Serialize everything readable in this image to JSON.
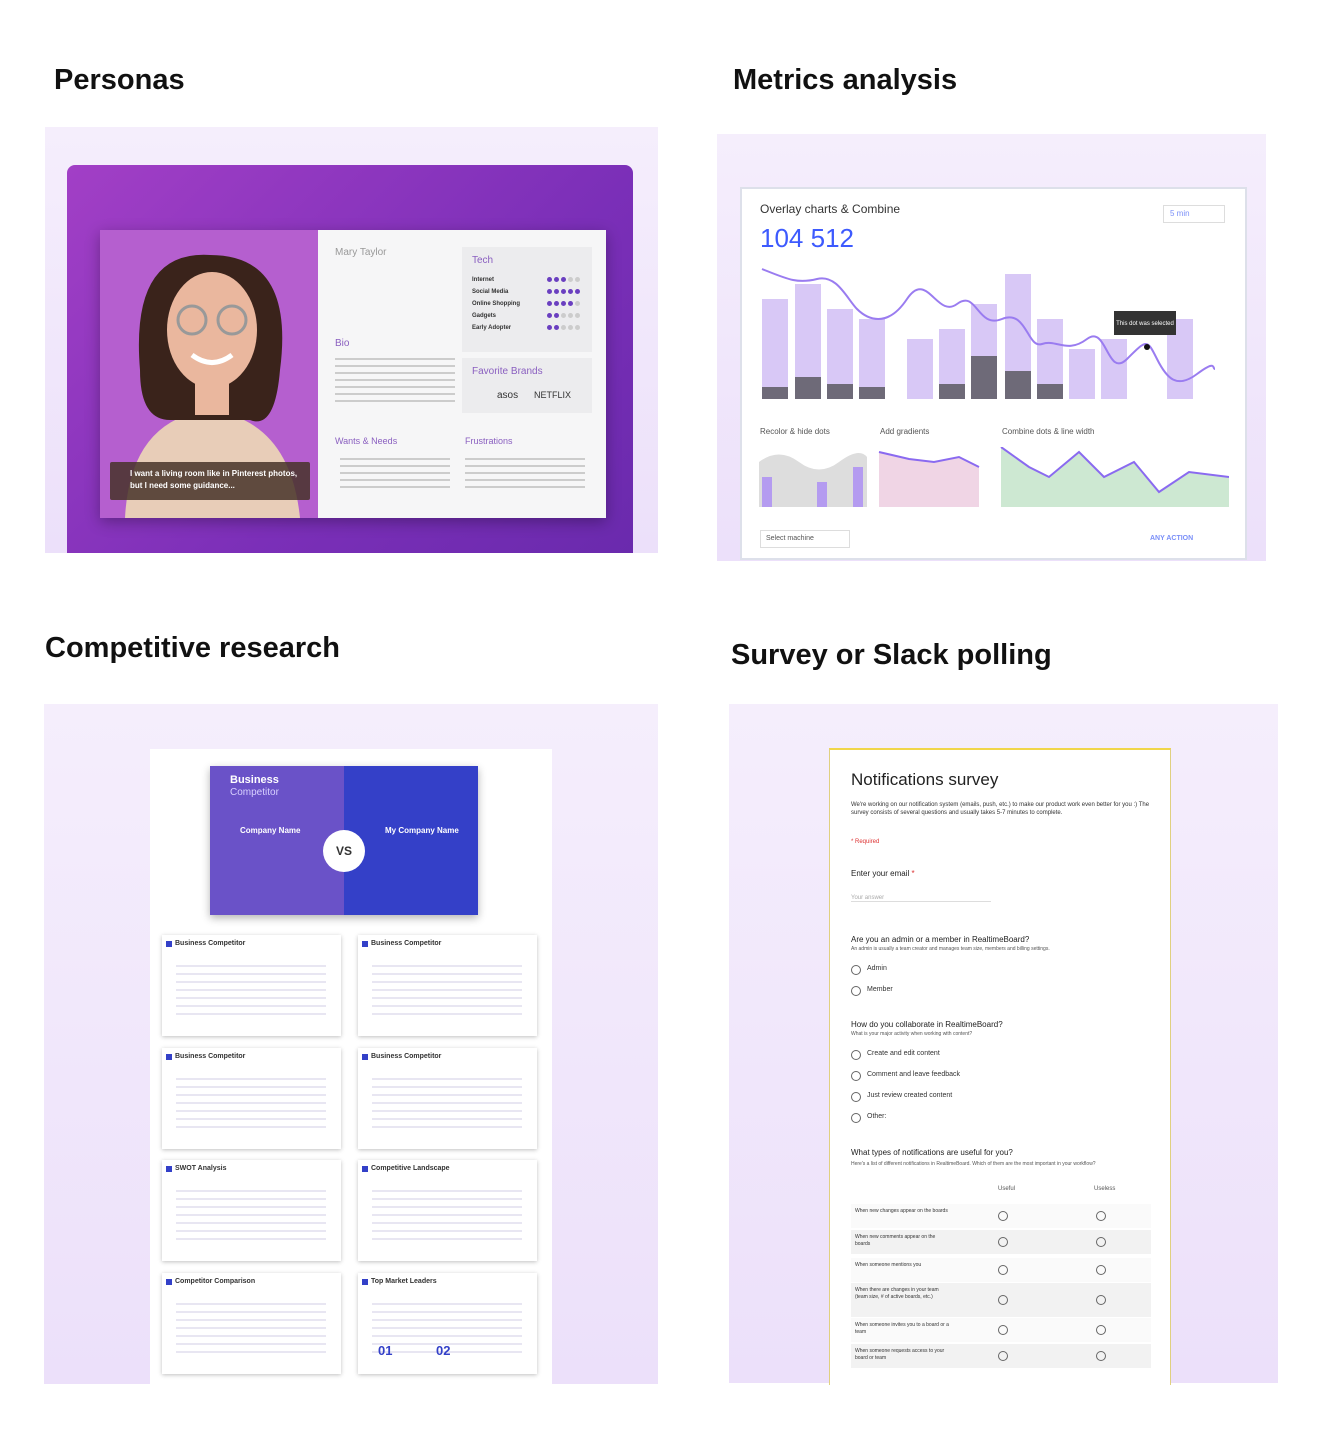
{
  "personas": {
    "heading": "Personas",
    "name": "Mary Taylor",
    "tech_title": "Tech",
    "tech_items": [
      "Internet",
      "Social Media",
      "Online Shopping",
      "Gadgets",
      "Early Adopter"
    ],
    "tech_ratings": [
      3,
      5,
      4,
      2,
      2
    ],
    "bio_title": "Bio",
    "brands_title": "Favorite Brands",
    "brands": [
      "asos",
      "NETFLIX"
    ],
    "wants_title": "Wants & Needs",
    "frustrations_title": "Frustrations",
    "quote": "I want a living room like in Pinterest photos, but I need some guidance..."
  },
  "metrics": {
    "heading": "Metrics analysis",
    "chart_title": "Overlay charts & Combine",
    "total": "104 512",
    "interval": "5 min",
    "tooltip": "This dot was selected",
    "mini_titles": [
      "Recolor & hide dots",
      "Add gradients",
      "Combine dots & line width"
    ],
    "select": "Select machine",
    "action": "ANY ACTION"
  },
  "competitive": {
    "heading": "Competitive research",
    "cover_title": "Business",
    "cover_subtitle": "Competitor",
    "vs": "VS",
    "company": "Company Name",
    "my_company": "My Company Name",
    "slides": [
      "Business Competitor",
      "Business Competitor",
      "Business Competitor",
      "Business Competitor",
      "SWOT Analysis",
      "Competitive Landscape",
      "Competitor Comparison",
      "Top Market Leaders"
    ],
    "ranks": [
      "01",
      "02"
    ]
  },
  "survey": {
    "heading": "Survey or Slack polling",
    "title": "Notifications survey",
    "intro": "We're working on our notification system (emails, push, etc.) to make our product work even better for you :) The survey consists of several questions and usually takes 5-7 minutes to complete.",
    "required": "* Required",
    "email_question": "Enter your email",
    "asterisk": "*",
    "answer_placeholder": "Your answer",
    "q2": "Are you an admin or a member in RealtimeBoard?",
    "q2_desc": "An admin is usually a team creator and manages team size, members and billing settings.",
    "q2_options": [
      "Admin",
      "Member"
    ],
    "q3": "How do you collaborate in RealtimeBoard?",
    "q3_desc": "What is your major activity when working with content?",
    "q3_options": [
      "Create and edit content",
      "Comment and leave feedback",
      "Just review created content",
      "Other:"
    ],
    "q4": "What types of notifications are useful for you?",
    "q4_desc": "Here's a list of different notifications in RealtimeBoard. Which of them are the most important in your workflow?",
    "columns": [
      "Useful",
      "Useless"
    ],
    "rows": [
      "When new changes appear on the boards",
      "When new comments appear on the boards",
      "When someone mentions you",
      "When there are changes in your team (team size, # of active boards, etc.)",
      "When someone invites you to a board or a team",
      "When someone requests access to your board or team"
    ]
  }
}
